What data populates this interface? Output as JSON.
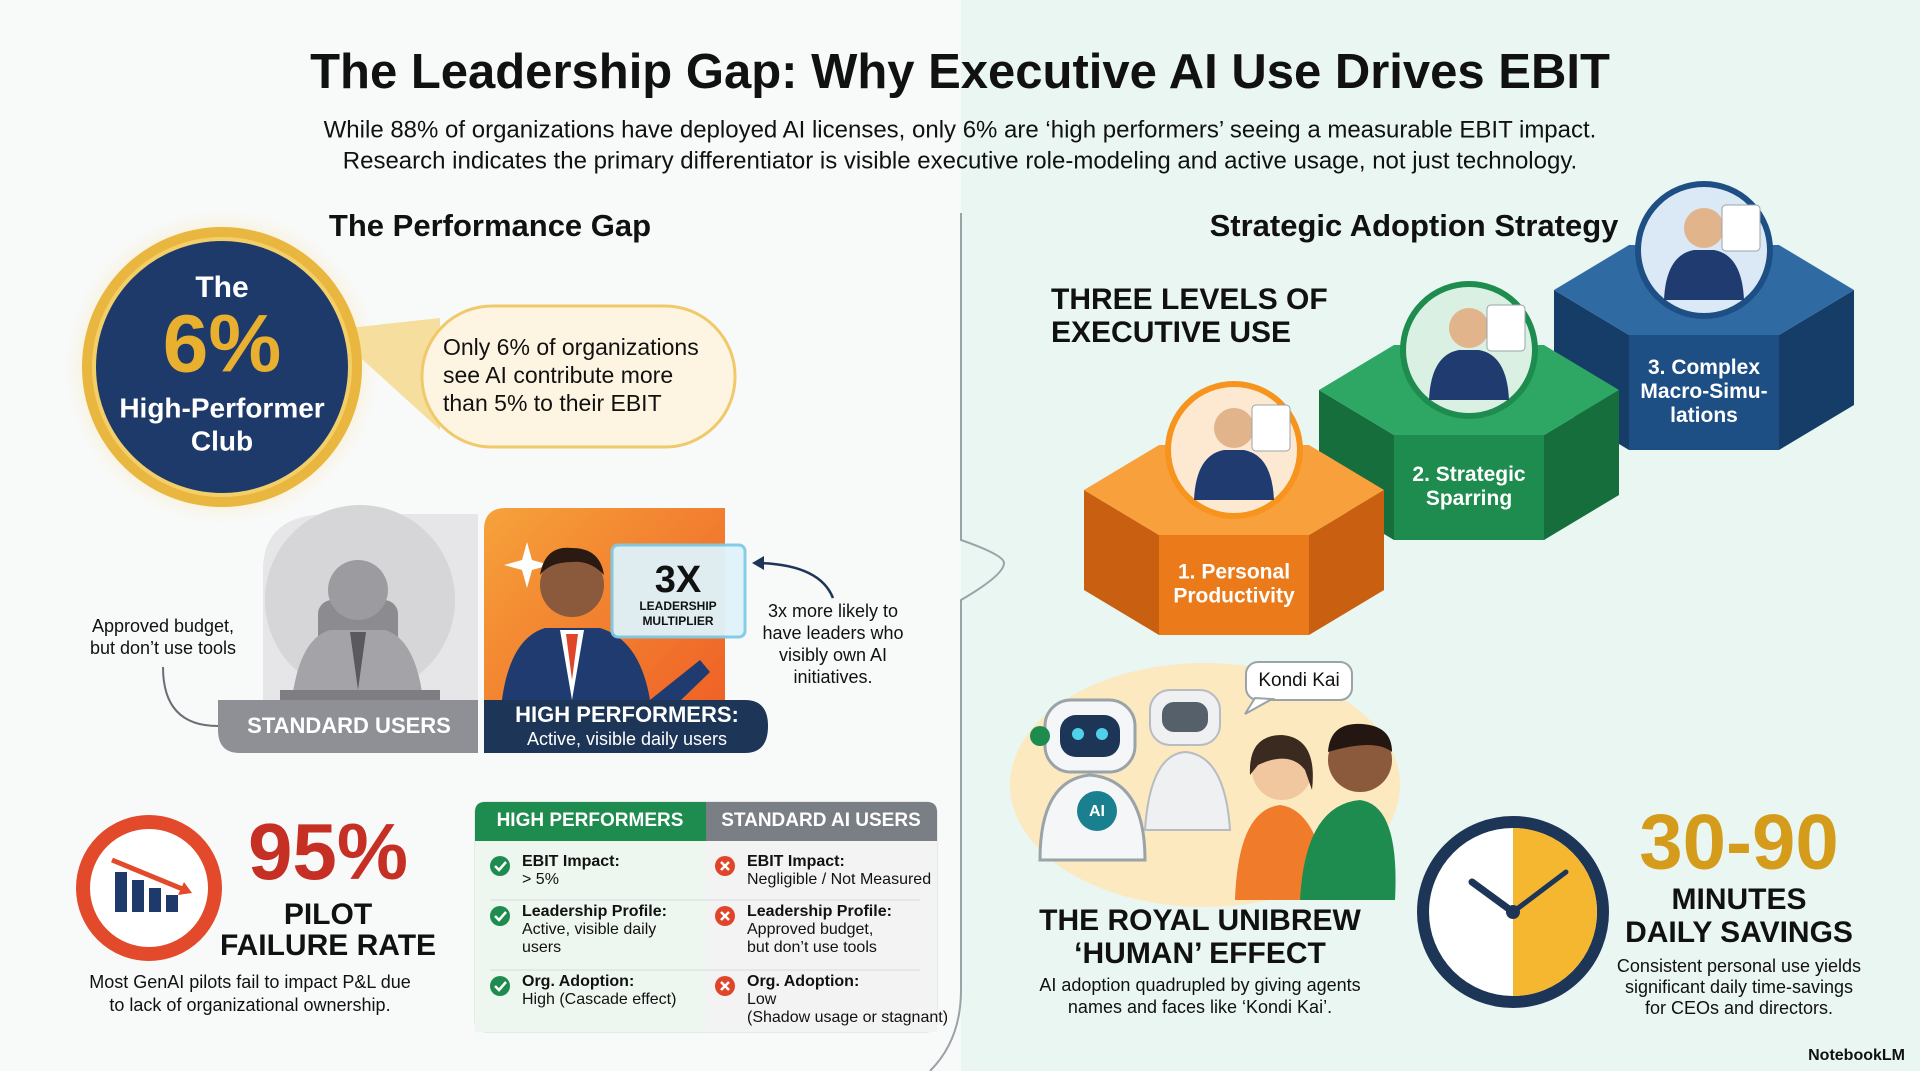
{
  "header": {
    "title": "The Leadership Gap: Why Executive AI Use Drives EBIT",
    "subtitle": [
      "While 88% of organizations have deployed AI licenses, only 6% are ‘high performers’ seeing a measurable EBIT impact.",
      "Research indicates the primary differentiator is visible executive role-modeling and active usage, not just technology."
    ]
  },
  "performance_gap": {
    "heading": "The Performance Gap",
    "badge": {
      "lines": [
        "The",
        "6%",
        "High-Performer",
        "Club"
      ]
    },
    "callout": [
      "Only 6% of organizations",
      "see AI contribute more",
      "than 5% to their EBIT"
    ],
    "standard_users": {
      "note": [
        "Approved budget,",
        "but don’t use tools"
      ],
      "label": "STANDARD USERS"
    },
    "high_performers": {
      "label": "HIGH PERFORMERS:",
      "sublabel": "Active, visible daily users",
      "screen": [
        "3X",
        "LEADERSHIP",
        "MULTIPLIER"
      ],
      "note": [
        "3x more likely to",
        "have leaders who",
        "visibly own AI",
        "initiatives."
      ]
    },
    "pilot": {
      "figure": "95%",
      "label": [
        "PILOT",
        "FAILURE RATE"
      ],
      "note": [
        "Most GenAI pilots fail to impact P&L due",
        "to lack of organizational ownership."
      ]
    }
  },
  "comparison": {
    "columns": [
      "HIGH PERFORMERS",
      "STANDARD AI USERS"
    ],
    "rows": [
      [
        {
          "label": "EBIT Impact:",
          "value": [
            "> 5%"
          ]
        },
        {
          "label": "EBIT Impact:",
          "value": [
            "Negligible / Not Measured"
          ]
        }
      ],
      [
        {
          "label": "Leadership Profile:",
          "value": [
            "Active, visible daily",
            "users"
          ]
        },
        {
          "label": "Leadership Profile:",
          "value": [
            "Approved budget,",
            "but don’t use tools"
          ]
        }
      ],
      [
        {
          "label": "Org. Adoption:",
          "value": [
            "High (Cascade effect)"
          ]
        },
        {
          "label": "Org. Adoption:",
          "value": [
            "Low",
            "(Shadow usage or stagnant)"
          ]
        }
      ]
    ]
  },
  "strategy": {
    "heading": "Strategic Adoption Strategy",
    "levels_title": [
      "THREE LEVELS OF",
      "EXECUTIVE USE"
    ],
    "levels": [
      [
        "1. Personal",
        "Productivity"
      ],
      [
        "2. Strategic",
        "Sparring"
      ],
      [
        "3. Complex",
        "Macro-Simu-",
        "lations"
      ]
    ],
    "human_effect": {
      "bubble": "Kondi Kai",
      "robot_badge": "AI",
      "title": [
        "THE ROYAL UNIBREW",
        "‘HUMAN’ EFFECT"
      ],
      "note": [
        "AI adoption quadrupled by giving agents",
        "names and faces like ‘Kondi Kai’."
      ]
    },
    "savings": {
      "figure": "30-90",
      "label": [
        "MINUTES",
        "DAILY SAVINGS"
      ],
      "note": [
        "Consistent personal use yields",
        "significant daily time-savings",
        "for CEOs and directors."
      ]
    }
  },
  "footer": {
    "brand": "NotebookLM"
  }
}
